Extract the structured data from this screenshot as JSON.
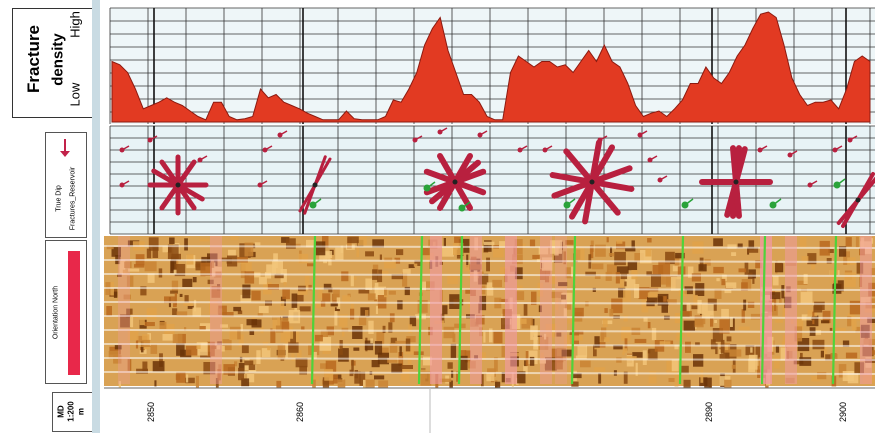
{
  "panels": {
    "fracture_density": {
      "title_line1": "Fracture",
      "title_line2": "density",
      "low_label": "Low",
      "high_label": "High",
      "fill_color": "#e23a22",
      "profile_levels": [
        0.55,
        0.52,
        0.45,
        0.3,
        0.12,
        0.15,
        0.18,
        0.22,
        0.18,
        0.15,
        0.1,
        0.05,
        0.02,
        0.18,
        0.18,
        0.05,
        0.02,
        0.03,
        0.05,
        0.3,
        0.22,
        0.25,
        0.18,
        0.15,
        0.12,
        0.08,
        0.05,
        0.02,
        0.02,
        0.02,
        0.1,
        0.03,
        0.02,
        0.02,
        0.02,
        0.05,
        0.2,
        0.18,
        0.3,
        0.45,
        0.7,
        0.85,
        0.95,
        0.65,
        0.45,
        0.25,
        0.25,
        0.18,
        0.05,
        0.02,
        0.02,
        0.45,
        0.6,
        0.55,
        0.5,
        0.55,
        0.55,
        0.5,
        0.52,
        0.45,
        0.55,
        0.65,
        0.55,
        0.7,
        0.55,
        0.5,
        0.35,
        0.15,
        0.05,
        0.08,
        0.1,
        0.05,
        0.12,
        0.2,
        0.35,
        0.35,
        0.5,
        0.4,
        0.35,
        0.45,
        0.6,
        0.7,
        0.85,
        0.98,
        1.0,
        0.95,
        0.7,
        0.4,
        0.25,
        0.15,
        0.18,
        0.18,
        0.2,
        0.12,
        0.3,
        0.55,
        0.6,
        0.55
      ]
    },
    "dip_tadpole": {
      "legend_line1": "True Dip",
      "legend_line2": "Fractures_Reservoir",
      "legend_color": "#c2224a"
    },
    "image_log": {
      "label": "Orientation North",
      "legend_color": "#e8284a"
    },
    "depth": {
      "md_label": "MD",
      "scale_label": "1:200",
      "unit_label": "m",
      "ticks": [
        "2850",
        "2860",
        "2890",
        "2900"
      ]
    }
  },
  "colors": {
    "grid": "#222222",
    "track_bg": "#e8f3f6",
    "rose_petal": "#b8203f",
    "green_tadpole": "#2aa33a"
  }
}
